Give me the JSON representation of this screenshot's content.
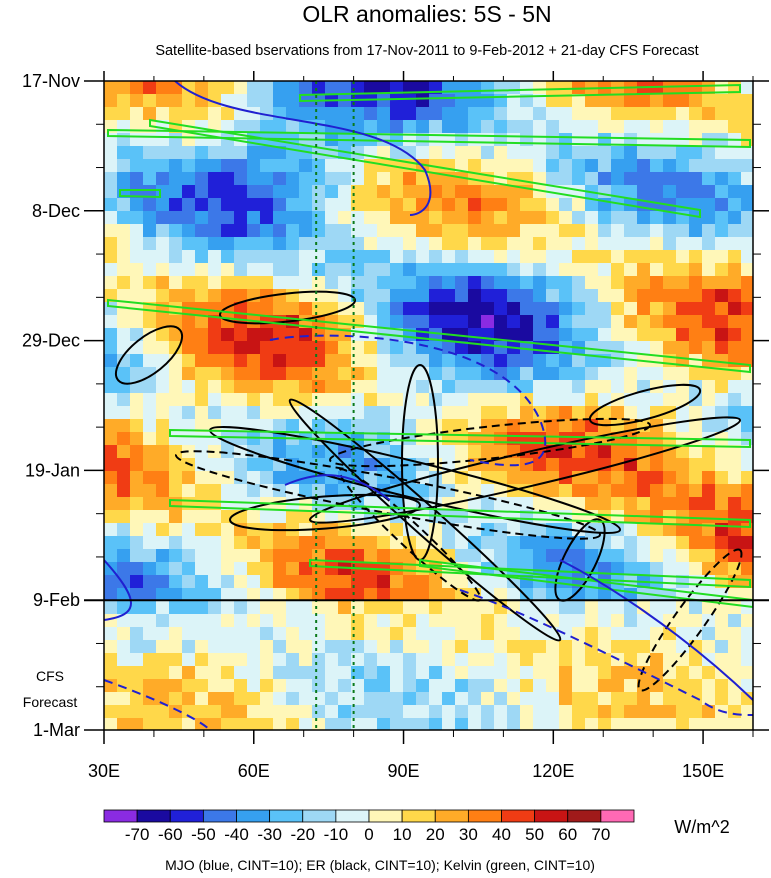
{
  "chart_data": {
    "type": "heatmap",
    "title": "OLR anomalies: 5S - 5N",
    "subtitle": "Satellite-based bservations from 17-Nov-2011 to 9-Feb-2012 + 21-day CFS Forecast",
    "x_ticks": [
      {
        "value": 30,
        "label": "30E"
      },
      {
        "value": 60,
        "label": "60E"
      },
      {
        "value": 90,
        "label": "90E"
      },
      {
        "value": 120,
        "label": "120E"
      },
      {
        "value": 150,
        "label": "150E"
      }
    ],
    "xlim": [
      30,
      160
    ],
    "y_ticks": [
      {
        "day": 0,
        "label": "17-Nov"
      },
      {
        "day": 21,
        "label": "8-Dec"
      },
      {
        "day": 42,
        "label": "29-Dec"
      },
      {
        "day": 63,
        "label": "19-Jan"
      },
      {
        "day": 84,
        "label": "9-Feb"
      },
      {
        "day": 105,
        "label": "1-Mar"
      }
    ],
    "forecast_label": [
      "CFS",
      "Forecast"
    ],
    "forecast_start_day": 84,
    "reference_lines_lon": [
      72.5,
      80
    ],
    "colorbar": {
      "levels": [
        -70,
        -60,
        -50,
        -40,
        -30,
        -20,
        -10,
        0,
        10,
        20,
        30,
        40,
        50,
        60,
        70
      ],
      "labels": [
        "-70",
        "-60",
        "-50",
        "-40",
        "-30",
        "-20",
        "-10",
        "0",
        "10",
        "20",
        "30",
        "40",
        "50",
        "60",
        "70"
      ],
      "colors": [
        "#8a2be2",
        "#1a0aa0",
        "#2020d8",
        "#3c78e8",
        "#36a0f0",
        "#5ac2f8",
        "#9ed8f5",
        "#dcf4f8",
        "#fff7b8",
        "#ffd84a",
        "#ffab28",
        "#ff7f14",
        "#f03c14",
        "#c81414",
        "#a01a1a",
        "#ff69b4"
      ],
      "units": "W/m^2"
    },
    "contours_note": "MJO (blue, CINT=10); ER (black, CINT=10); Kelvin (green, CINT=10)",
    "series_colors": {
      "MJO": "#2020d0",
      "ER": "#000000",
      "Kelvin": "#22dd22"
    }
  }
}
